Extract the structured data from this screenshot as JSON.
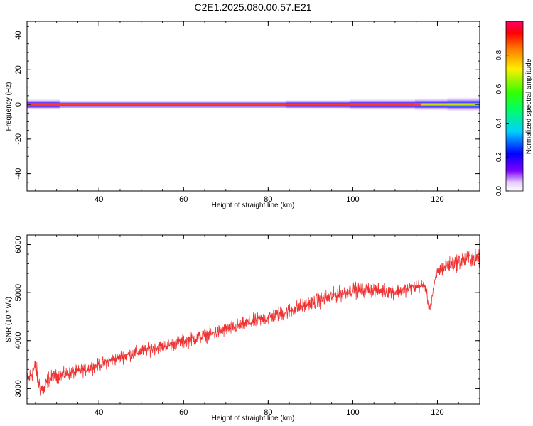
{
  "title": "C2E1.2025.080.00.57.E21",
  "chart_data": [
    {
      "type": "heatmap",
      "xlabel": "Height of straight line (km)",
      "ylabel": "Frequency (Hz)",
      "xlim": [
        23,
        130
      ],
      "ylim": [
        -50,
        48
      ],
      "xticks": [
        40,
        60,
        80,
        100,
        120
      ],
      "yticks": [
        -40,
        -20,
        0,
        20,
        40
      ],
      "band": {
        "center_frequency": 0,
        "core_halfwidth_hz": 0.6,
        "envelope_halfwidth_hz": [
          3,
          2,
          2,
          2,
          2,
          2,
          2,
          2,
          2.5,
          2.5,
          3,
          3,
          3.5,
          4
        ]
      },
      "colorbar": {
        "label": "Normalized spectral amplitude",
        "range": [
          0,
          1
        ],
        "ticks": [
          0.0,
          0.2,
          0.4,
          0.6,
          0.8
        ]
      }
    },
    {
      "type": "line",
      "xlabel": "Height of straight line (km)",
      "ylabel": "SNR (10 * v/v)",
      "xlim": [
        23,
        130
      ],
      "ylim": [
        2680,
        6200
      ],
      "xticks": [
        40,
        60,
        80,
        100,
        120
      ],
      "yticks": [
        3000,
        4000,
        5000,
        6000
      ],
      "color": "#ee3333",
      "series": [
        {
          "x": [
            23,
            24,
            25,
            26,
            27,
            28,
            30,
            32,
            35,
            40,
            45,
            50,
            55,
            60,
            65,
            70,
            75,
            80,
            85,
            90,
            95,
            100,
            105,
            110,
            115,
            117,
            118,
            118.5,
            119,
            120,
            122,
            125,
            128,
            130
          ],
          "y": [
            3150,
            3300,
            3450,
            3050,
            2950,
            3200,
            3250,
            3300,
            3350,
            3500,
            3650,
            3780,
            3880,
            3980,
            4100,
            4230,
            4360,
            4480,
            4620,
            4780,
            4920,
            5050,
            5060,
            5020,
            5120,
            5150,
            4720,
            4760,
            5050,
            5450,
            5550,
            5650,
            5720,
            5700
          ],
          "noise_amplitude": [
            300,
            300,
            300,
            320,
            300,
            250,
            220,
            200,
            200,
            200,
            200,
            200,
            210,
            220,
            220,
            220,
            220,
            230,
            240,
            240,
            240,
            240,
            230,
            220,
            210,
            200,
            180,
            180,
            200,
            230,
            250,
            260,
            270,
            270
          ]
        }
      ]
    }
  ]
}
